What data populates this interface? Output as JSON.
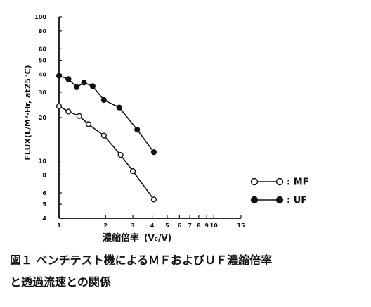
{
  "chart_data": {
    "type": "line",
    "xscale": "log",
    "yscale": "log",
    "xlabel_main": "濃縮倍率",
    "xlabel_unit": "(V₀/V)",
    "ylabel": "FLUX(L/M²·Hr, at25°C)",
    "xlim": [
      1,
      15
    ],
    "ylim": [
      4,
      100
    ],
    "x_ticks": [
      "1",
      "2",
      "3",
      "4",
      "5",
      "6",
      "7",
      "8",
      "9",
      "10",
      "15"
    ],
    "y_ticks": [
      "4",
      "5",
      "6",
      "8",
      "10",
      "20",
      "30",
      "40",
      "50",
      "60",
      "80",
      "100"
    ],
    "grid": false,
    "legend_position": "right",
    "series": [
      {
        "name": "MF",
        "marker": "open-circle",
        "x": [
          1.0,
          1.15,
          1.35,
          1.55,
          1.95,
          2.5,
          3.0,
          4.1
        ],
        "y": [
          24,
          22,
          20.5,
          18,
          15,
          11,
          8.5,
          5.4
        ]
      },
      {
        "name": "UF",
        "marker": "filled-circle",
        "x": [
          1.0,
          1.15,
          1.3,
          1.45,
          1.65,
          1.95,
          2.45,
          3.2,
          4.1
        ],
        "y": [
          39,
          37,
          32.5,
          35,
          33,
          26.5,
          23.5,
          16.5,
          11.5
        ]
      }
    ],
    "legend": [
      {
        "series": "MF",
        "label": ": MF"
      },
      {
        "series": "UF",
        "label": ": UF"
      }
    ]
  },
  "caption": {
    "line1": "図１ ベンチテスト機によるＭＦおよびＵＦ濃縮倍率",
    "line2": "と透過流速との関係"
  },
  "colors": {
    "ink": "#111111",
    "background": "#ffffff"
  }
}
